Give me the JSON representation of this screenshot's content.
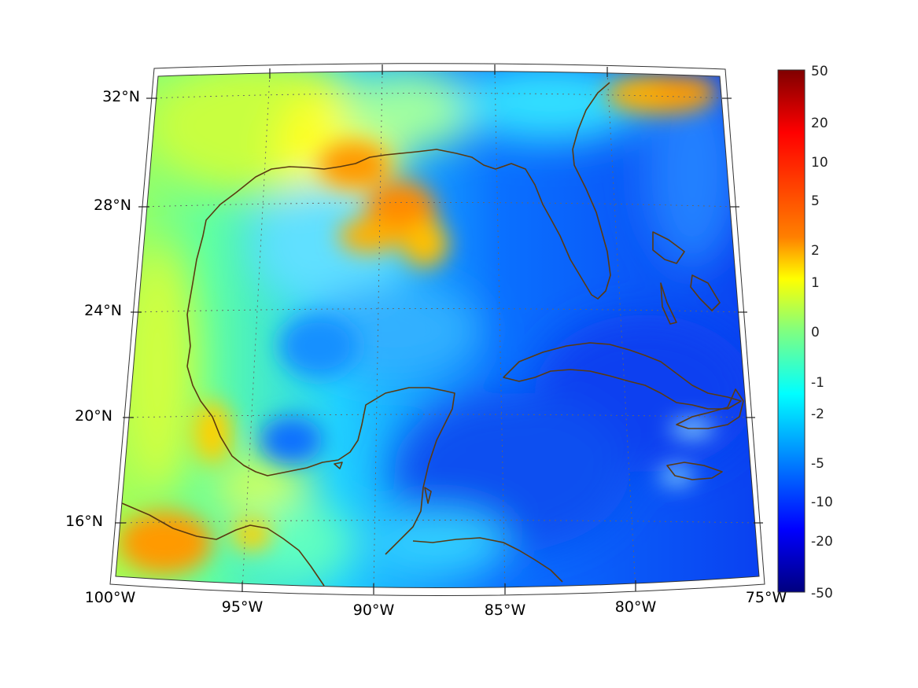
{
  "map": {
    "lat_labels": [
      "32°N",
      "28°N",
      "24°N",
      "20°N",
      "16°N"
    ],
    "lon_labels": [
      "100°W",
      "95°W",
      "90°W",
      "85°W",
      "80°W",
      "75°W"
    ],
    "colorbar": {
      "labels": [
        "50",
        "20",
        "10",
        "5",
        "2",
        "1",
        "0",
        "-1",
        "-2",
        "-5",
        "-10",
        "-20",
        "-50"
      ],
      "colors": [
        "#7f0000",
        "#ff0000",
        "#ff8000",
        "#ffff00",
        "#80ff80",
        "#00ffff",
        "#0080ff",
        "#0000ff",
        "#00007f"
      ]
    },
    "coastline_color": "#5a3a10"
  }
}
